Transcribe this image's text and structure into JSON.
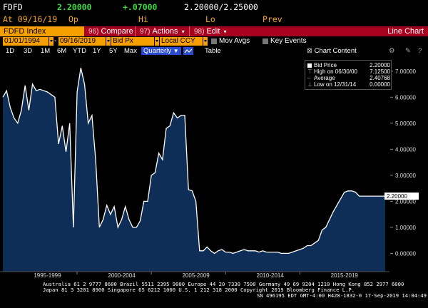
{
  "quote": {
    "ticker": "FDFD",
    "last": "2.20000",
    "change": "+.07000",
    "bid_ask": "2.20000/2.25000",
    "line2_date": "At 09/16/19",
    "open_label": "Op",
    "high_label": "Hi",
    "low_label": "Lo",
    "prev_label": "Prev"
  },
  "command_bar": {
    "security": "FDFD Index",
    "menus": [
      {
        "num": "96)",
        "label": "Compare"
      },
      {
        "num": "97)",
        "label": "Actions"
      },
      {
        "num": "98)",
        "label": "Edit"
      }
    ],
    "chart_name": "Line Chart",
    "colors": {
      "bar": "#a8001f",
      "field": "#f5a000"
    }
  },
  "fields": {
    "start_date": "01/01/1994",
    "end_date": "09/16/2019",
    "price_field": "Bid Px",
    "currency": "Local CCY",
    "mov_avgs": "Mov Avgs",
    "key_events": "Key Events"
  },
  "periods": {
    "items": [
      "1D",
      "3D",
      "1M",
      "6M",
      "YTD",
      "1Y",
      "5Y",
      "Max"
    ],
    "selected": "Quarterly",
    "table": "Table",
    "chart_content": "Chart Content"
  },
  "legend": {
    "rows": [
      {
        "label": "Bid Price",
        "value": "2.20000"
      },
      {
        "label": "High on 06/30/00",
        "value": "7.12500"
      },
      {
        "label": "Average",
        "value": "2.40768"
      },
      {
        "label": "Low on 12/31/14",
        "value": "0.00000"
      }
    ]
  },
  "chart_data": {
    "type": "area",
    "title": "",
    "xlabel": "",
    "ylabel": "",
    "x_tick_labels": [
      "1995-1999",
      "2000-2004",
      "2005-2009",
      "2010-2014",
      "2015-2019"
    ],
    "y_tick_labels": [
      "0.00000",
      "1.00000",
      "2.00000",
      "3.00000",
      "4.00000",
      "5.00000",
      "6.00000",
      "7.00000"
    ],
    "last_value_label": "2.20000",
    "ylim": [
      -0.7,
      7.35
    ],
    "xlim": [
      1994.0,
      2019.75
    ],
    "grid": false,
    "colors": {
      "fill": "#0e2d57",
      "line": "#ffffff"
    },
    "x": [
      1994.0,
      1994.25,
      1994.5,
      1994.75,
      1995.0,
      1995.25,
      1995.5,
      1995.75,
      1996.0,
      1996.25,
      1996.5,
      1996.75,
      1997.0,
      1997.25,
      1997.5,
      1997.75,
      1998.0,
      1998.25,
      1998.5,
      1998.75,
      1999.0,
      1999.25,
      1999.5,
      1999.75,
      2000.0,
      2000.25,
      2000.5,
      2000.75,
      2001.0,
      2001.25,
      2001.5,
      2001.75,
      2002.0,
      2002.25,
      2002.5,
      2002.75,
      2003.0,
      2003.25,
      2003.5,
      2003.75,
      2004.0,
      2004.25,
      2004.5,
      2004.75,
      2005.0,
      2005.25,
      2005.5,
      2005.75,
      2006.0,
      2006.25,
      2006.5,
      2006.75,
      2007.0,
      2007.25,
      2007.5,
      2007.75,
      2008.0,
      2008.25,
      2008.5,
      2008.75,
      2009.0,
      2009.25,
      2009.5,
      2009.75,
      2010.0,
      2010.25,
      2010.5,
      2010.75,
      2011.0,
      2011.25,
      2011.5,
      2011.75,
      2012.0,
      2012.25,
      2012.5,
      2012.75,
      2013.0,
      2013.25,
      2013.5,
      2013.75,
      2014.0,
      2014.25,
      2014.5,
      2014.75,
      2015.0,
      2015.25,
      2015.5,
      2015.75,
      2016.0,
      2016.25,
      2016.5,
      2016.75,
      2017.0,
      2017.25,
      2017.5,
      2017.75,
      2018.0,
      2018.25,
      2018.5,
      2018.75,
      2019.0,
      2019.25,
      2019.5,
      2019.75
    ],
    "series": [
      {
        "values": [
          6.0,
          6.25,
          5.6,
          5.2,
          5.0,
          5.5,
          6.45,
          5.5,
          6.5,
          6.25,
          6.3,
          6.25,
          6.2,
          6.1,
          6.0,
          4.2,
          4.9,
          3.9,
          5.0,
          1.0,
          6.2,
          7.125,
          6.5,
          5.0,
          5.3,
          3.6,
          1.0,
          1.3,
          1.85,
          1.5,
          1.8,
          1.0,
          1.3,
          1.8,
          1.3,
          1.0,
          1.0,
          1.25,
          2.0,
          2.0,
          3.0,
          3.1,
          3.85,
          3.6,
          4.8,
          4.9,
          5.4,
          5.2,
          5.3,
          5.3,
          2.45,
          2.4,
          2.0,
          0.1,
          0.1,
          0.25,
          0.1,
          0.0,
          0.1,
          0.15,
          0.05,
          0.05,
          0.0,
          0.05,
          0.1,
          0.15,
          0.1,
          0.1,
          0.1,
          0.05,
          0.1,
          0.05,
          0.05,
          0.05,
          0.05,
          0.0,
          0.0,
          0.0,
          0.05,
          0.1,
          0.15,
          0.2,
          0.3,
          0.3,
          0.4,
          0.5,
          0.9,
          1.0,
          1.3,
          1.6,
          1.85,
          2.1,
          2.35,
          2.4,
          2.4,
          2.35,
          2.2,
          2.2,
          2.2,
          2.2,
          2.2,
          2.2,
          2.2,
          2.2
        ]
      }
    ]
  },
  "footer": {
    "line1": "Australia 61 2 9777 8600 Brazil 5511 2395 9000 Europe 44 20 7330 7500 Germany 49 69 9204 1210 Hong Kong 852 2977 6000",
    "line2": "Japan 81 3 3201 8900          Singapore 65 6212 1000          U.S. 1 212 318 2000          Copyright 2019 Bloomberg Finance L.P.",
    "line3": "SN 496195 EDT  GMT-4:00 H428-1832-0 17-Sep-2019 14:04:49"
  }
}
